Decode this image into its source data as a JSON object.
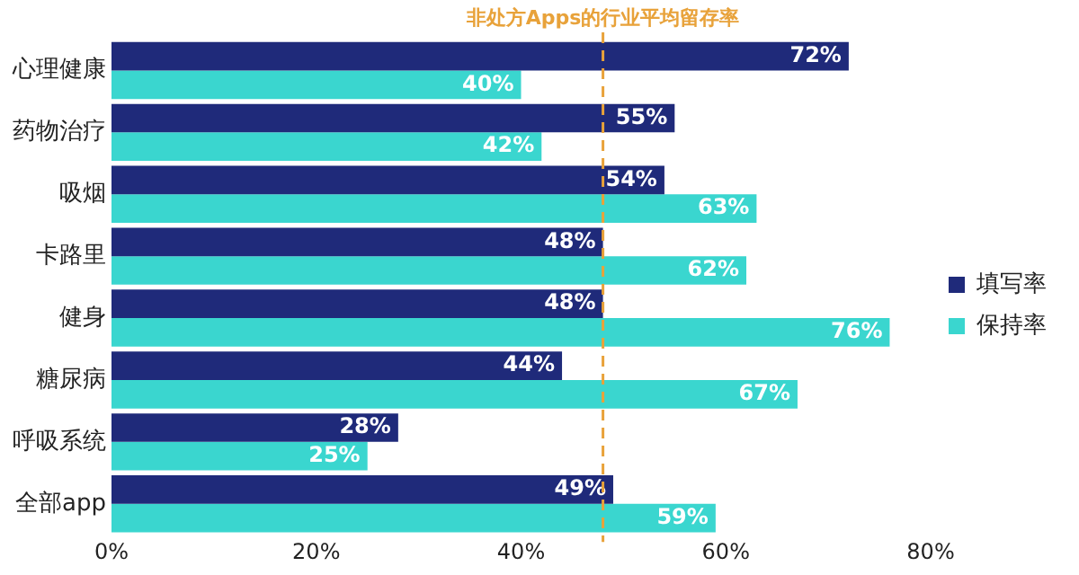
{
  "chart_data": {
    "type": "bar",
    "orientation": "horizontal",
    "categories": [
      "心理健康",
      "药物治疗",
      "吸烟",
      "卡路里",
      "健身",
      "糖尿病",
      "呼吸系统",
      "全部app"
    ],
    "series": [
      {
        "name": "填写率",
        "color": "#1f2a7a",
        "values": [
          72,
          55,
          54,
          48,
          48,
          44,
          28,
          49
        ],
        "value_labels": [
          "72%",
          "55%",
          "54%",
          "48%",
          "48%",
          "44%",
          "28%",
          "49%"
        ]
      },
      {
        "name": "保持率",
        "color": "#3ad6cf",
        "values": [
          40,
          42,
          63,
          62,
          76,
          67,
          25,
          59
        ],
        "value_labels": [
          "40%",
          "42%",
          "63%",
          "62%",
          "76%",
          "67%",
          "25%",
          "59%"
        ]
      }
    ],
    "xlim": [
      0,
      80
    ],
    "xticks": [
      {
        "value": 0,
        "label": "0%"
      },
      {
        "value": 20,
        "label": "20%"
      },
      {
        "value": 40,
        "label": "40%"
      },
      {
        "value": 60,
        "label": "60%"
      },
      {
        "value": 80,
        "label": "80%"
      }
    ],
    "ref_lines": [
      {
        "axis": "x",
        "value": 48,
        "label": "非处方Apps的行业平均留存率",
        "color": "#e8a23a",
        "line_style": "dashed"
      }
    ],
    "grid": false,
    "legend": "right"
  }
}
